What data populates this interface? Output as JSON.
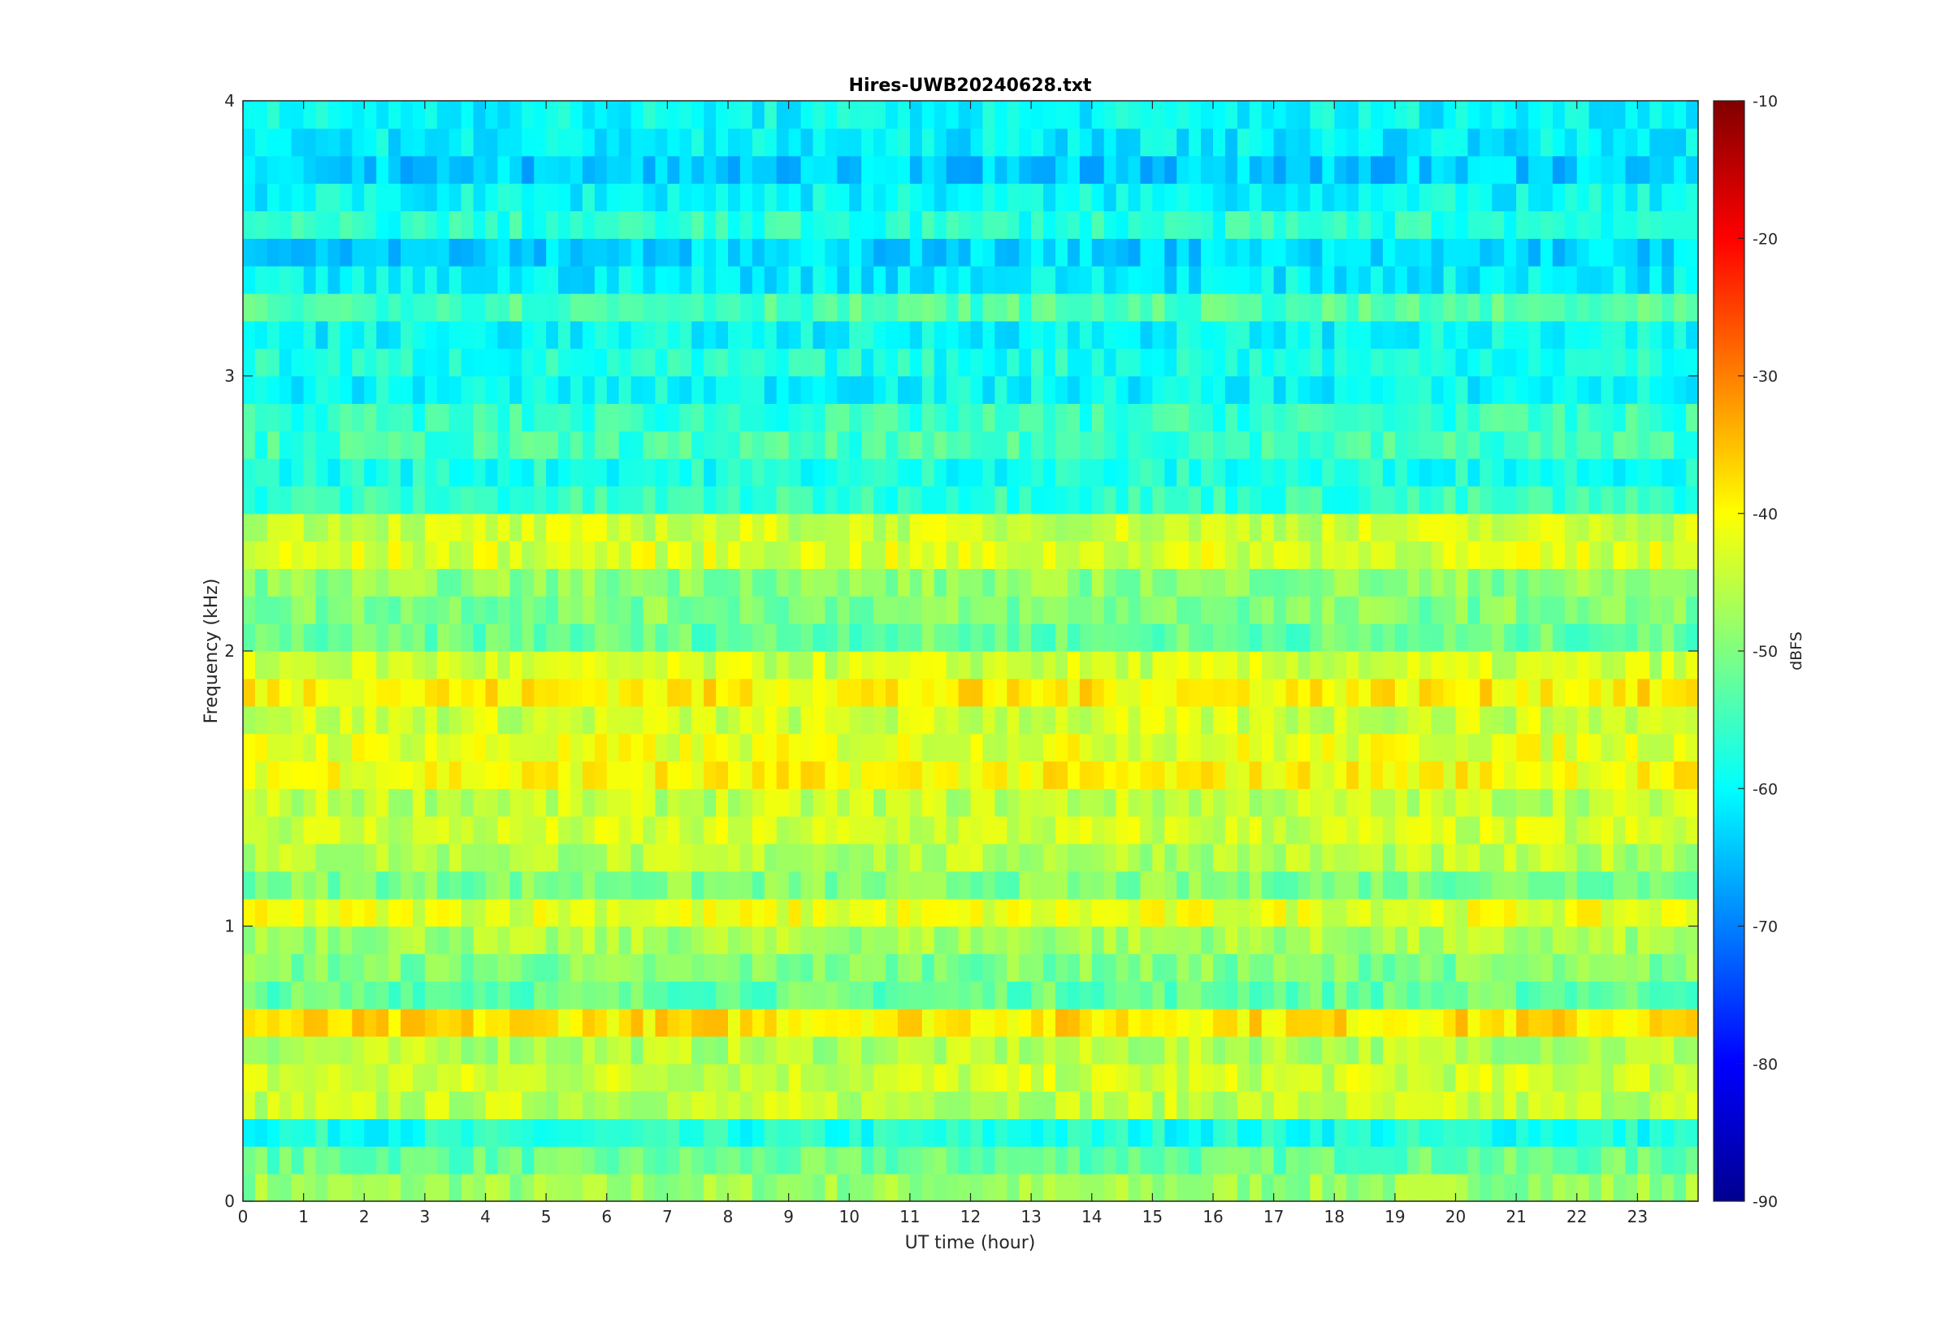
{
  "chart_data": {
    "type": "heatmap",
    "title": "Hires-UWB20240628.txt",
    "xlabel": "UT time (hour)",
    "ylabel": "Frequency (kHz)",
    "xlim": [
      0,
      24
    ],
    "ylim": [
      0,
      4
    ],
    "x_ticks": [
      "0",
      "1",
      "2",
      "3",
      "4",
      "5",
      "6",
      "7",
      "8",
      "9",
      "10",
      "11",
      "12",
      "13",
      "14",
      "15",
      "16",
      "17",
      "18",
      "19",
      "20",
      "21",
      "22",
      "23"
    ],
    "y_ticks": [
      "0",
      "1",
      "2",
      "3",
      "4"
    ],
    "colorbar": {
      "label": "dBFS",
      "range": [
        -90,
        -10
      ],
      "ticks": [
        "-90",
        "-80",
        "-70",
        "-60",
        "-50",
        "-40",
        "-30",
        "-20",
        "-10"
      ],
      "colormap": "jet"
    },
    "grid": false,
    "band_profile": {
      "description_unit": "frequency kHz -> typical level dBFS",
      "frequencies_khz": [
        0.05,
        0.15,
        0.25,
        0.35,
        0.45,
        0.55,
        0.65,
        0.75,
        0.85,
        0.95,
        1.05,
        1.15,
        1.25,
        1.35,
        1.45,
        1.55,
        1.65,
        1.75,
        1.85,
        1.95,
        2.05,
        2.15,
        2.25,
        2.35,
        2.45,
        2.55,
        2.65,
        2.75,
        2.85,
        2.95,
        3.05,
        3.15,
        3.25,
        3.35,
        3.45,
        3.55,
        3.65,
        3.75,
        3.85,
        3.95
      ],
      "levels_dbfs": [
        -48,
        -52,
        -58,
        -45,
        -44,
        -46,
        -38,
        -52,
        -50,
        -47,
        -42,
        -50,
        -46,
        -44,
        -45,
        -40,
        -42,
        -44,
        -39,
        -44,
        -52,
        -50,
        -49,
        -43,
        -44,
        -56,
        -58,
        -55,
        -56,
        -60,
        -58,
        -60,
        -54,
        -61,
        -63,
        -57,
        -60,
        -64,
        -61,
        -60
      ]
    }
  }
}
